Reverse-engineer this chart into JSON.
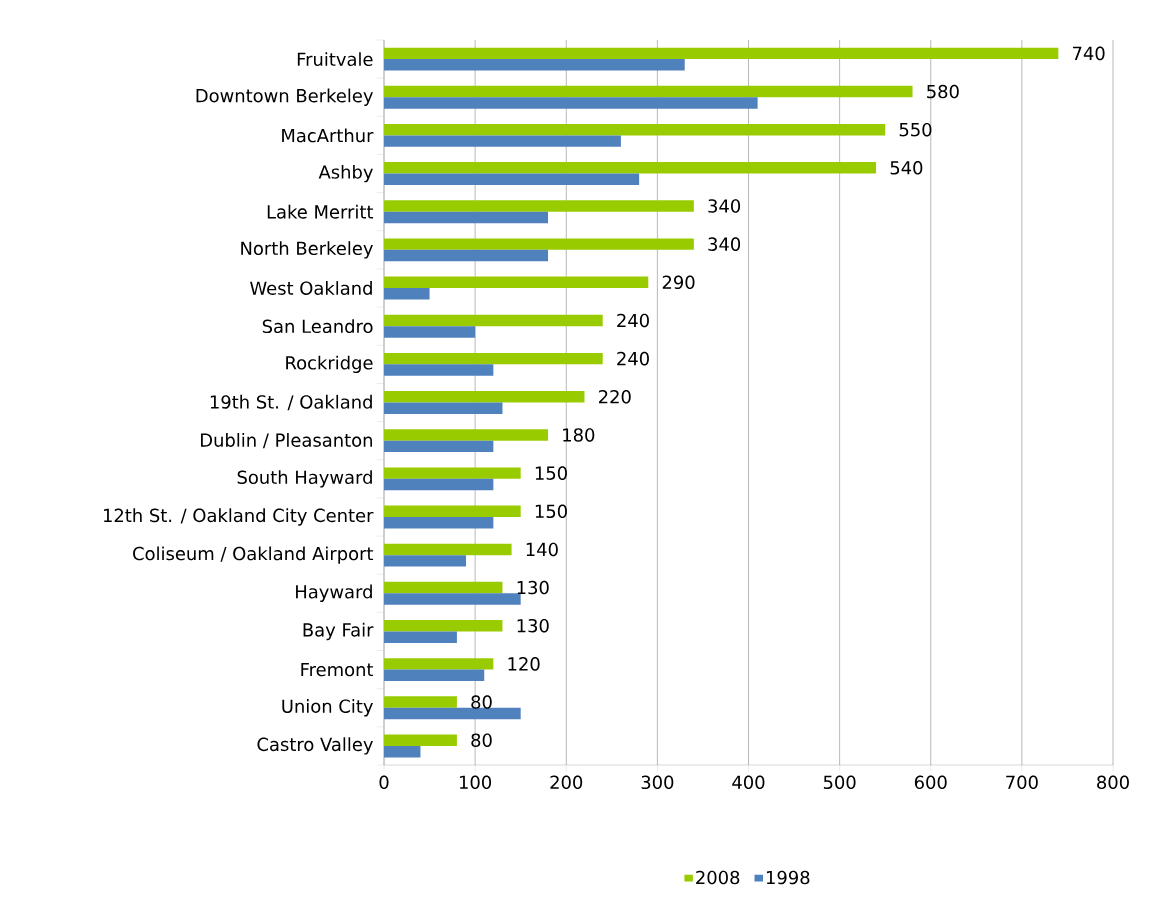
{
  "chart_data": {
    "type": "bar",
    "orientation": "horizontal",
    "categories": [
      "Fruitvale",
      "Downtown Berkeley",
      "MacArthur",
      "Ashby",
      "Lake Merritt",
      "North Berkeley",
      "West Oakland",
      "San Leandro",
      "Rockridge",
      "19th St. / Oakland",
      "Dublin / Pleasanton",
      "South Hayward",
      "12th St. / Oakland City Center",
      "Coliseum / Oakland Airport",
      "Hayward",
      "Bay Fair",
      "Fremont",
      "Union City",
      "Castro Valley"
    ],
    "series": [
      {
        "name": "2008",
        "color": "#99cc00",
        "values": [
          740,
          580,
          550,
          540,
          340,
          340,
          290,
          240,
          240,
          220,
          180,
          150,
          150,
          140,
          130,
          130,
          120,
          80,
          80
        ],
        "value_labels": [
          "740",
          "580",
          "550",
          "540",
          "340",
          "340",
          "290",
          "240",
          "240",
          "220",
          "180",
          "150",
          "150",
          "140",
          "130",
          "130",
          "120",
          "80",
          "80"
        ]
      },
      {
        "name": "1998",
        "color": "#4f81bd",
        "values": [
          330,
          410,
          260,
          280,
          180,
          180,
          50,
          100,
          120,
          130,
          120,
          120,
          120,
          90,
          150,
          80,
          110,
          150,
          40
        ]
      }
    ],
    "xlim": [
      0,
      800
    ],
    "xticks": [
      0,
      100,
      200,
      300,
      400,
      500,
      600,
      700,
      800
    ],
    "grid": "x",
    "legend": "bottom"
  }
}
